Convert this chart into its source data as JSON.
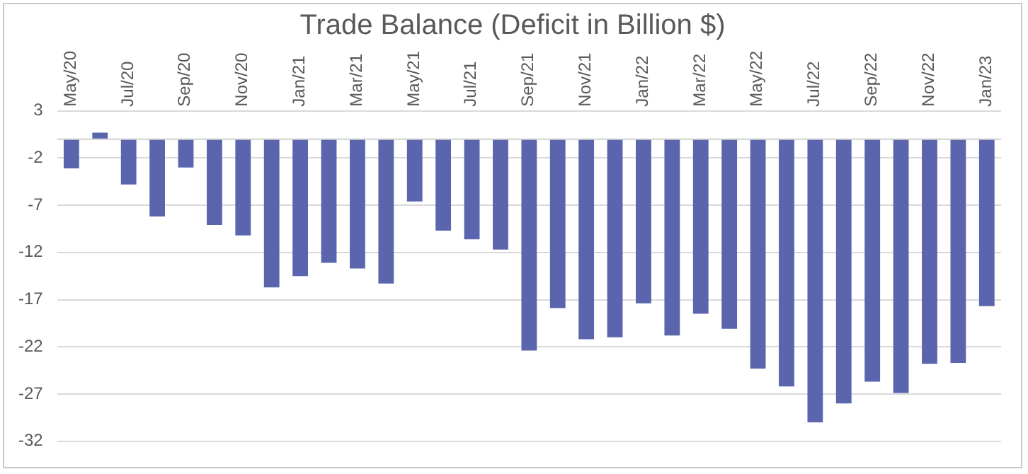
{
  "chart_data": {
    "type": "bar",
    "title": "Trade Balance (Deficit in Billion $)",
    "categories": [
      "May/20",
      null,
      "Jul/20",
      null,
      "Sep/20",
      null,
      "Nov/20",
      null,
      "Jan/21",
      null,
      "Mar/21",
      null,
      "May/21",
      null,
      "Jul/21",
      null,
      "Sep/21",
      null,
      "Nov/21",
      null,
      "Jan/22",
      null,
      "Mar/22",
      null,
      "May/22",
      null,
      "Jul/22",
      null,
      "Sep/22",
      null,
      "Nov/22",
      null,
      "Jan/23"
    ],
    "values": [
      -3.1,
      0.7,
      -4.8,
      -8.2,
      -3.0,
      -9.1,
      -10.2,
      -15.7,
      -14.5,
      -13.1,
      -13.7,
      -15.3,
      -6.6,
      -9.7,
      -10.6,
      -11.7,
      -22.4,
      -17.9,
      -21.2,
      -21.0,
      -17.4,
      -20.8,
      -18.5,
      -20.1,
      -24.3,
      -26.2,
      -30.0,
      -28.0,
      -25.7,
      -26.9,
      -23.8,
      -23.7,
      -17.7
    ],
    "color": "#5b65ad",
    "ylim": [
      -32,
      3
    ],
    "yticks": [
      3,
      -2,
      -7,
      -12,
      -17,
      -22,
      -27,
      -32
    ],
    "grid": "y",
    "legend": false
  }
}
